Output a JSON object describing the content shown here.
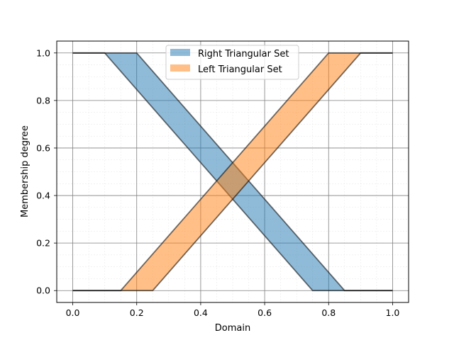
{
  "chart_data": {
    "type": "area",
    "xlabel": "Domain",
    "ylabel": "Membership degree",
    "xlim": [
      -0.05,
      1.05
    ],
    "ylim": [
      -0.05,
      1.05
    ],
    "xticks": [
      0.0,
      0.2,
      0.4,
      0.6,
      0.8,
      1.0
    ],
    "xtick_labels": [
      "0.0",
      "0.2",
      "0.4",
      "0.6",
      "0.8",
      "1.0"
    ],
    "yticks": [
      0.0,
      0.2,
      0.4,
      0.6,
      0.8,
      1.0
    ],
    "ytick_labels": [
      "0.0",
      "0.2",
      "0.4",
      "0.6",
      "0.8",
      "1.0"
    ],
    "grid": true,
    "minor_grid": true,
    "legend_position": "upper-center",
    "series": [
      {
        "name": "Right Triangular Set",
        "color": "#1f77b4",
        "upper": {
          "x": [
            0.0,
            0.2,
            0.85,
            1.0
          ],
          "y": [
            1.0,
            1.0,
            0.0,
            0.0
          ]
        },
        "lower": {
          "x": [
            0.0,
            0.1,
            0.75,
            1.0
          ],
          "y": [
            1.0,
            1.0,
            0.0,
            0.0
          ]
        }
      },
      {
        "name": "Left Triangular Set",
        "color": "#ff7f0e",
        "upper": {
          "x": [
            0.0,
            0.15,
            0.8,
            1.0
          ],
          "y": [
            0.0,
            0.0,
            1.0,
            1.0
          ]
        },
        "lower": {
          "x": [
            0.0,
            0.25,
            0.9,
            1.0
          ],
          "y": [
            0.0,
            0.0,
            1.0,
            1.0
          ]
        }
      }
    ]
  }
}
